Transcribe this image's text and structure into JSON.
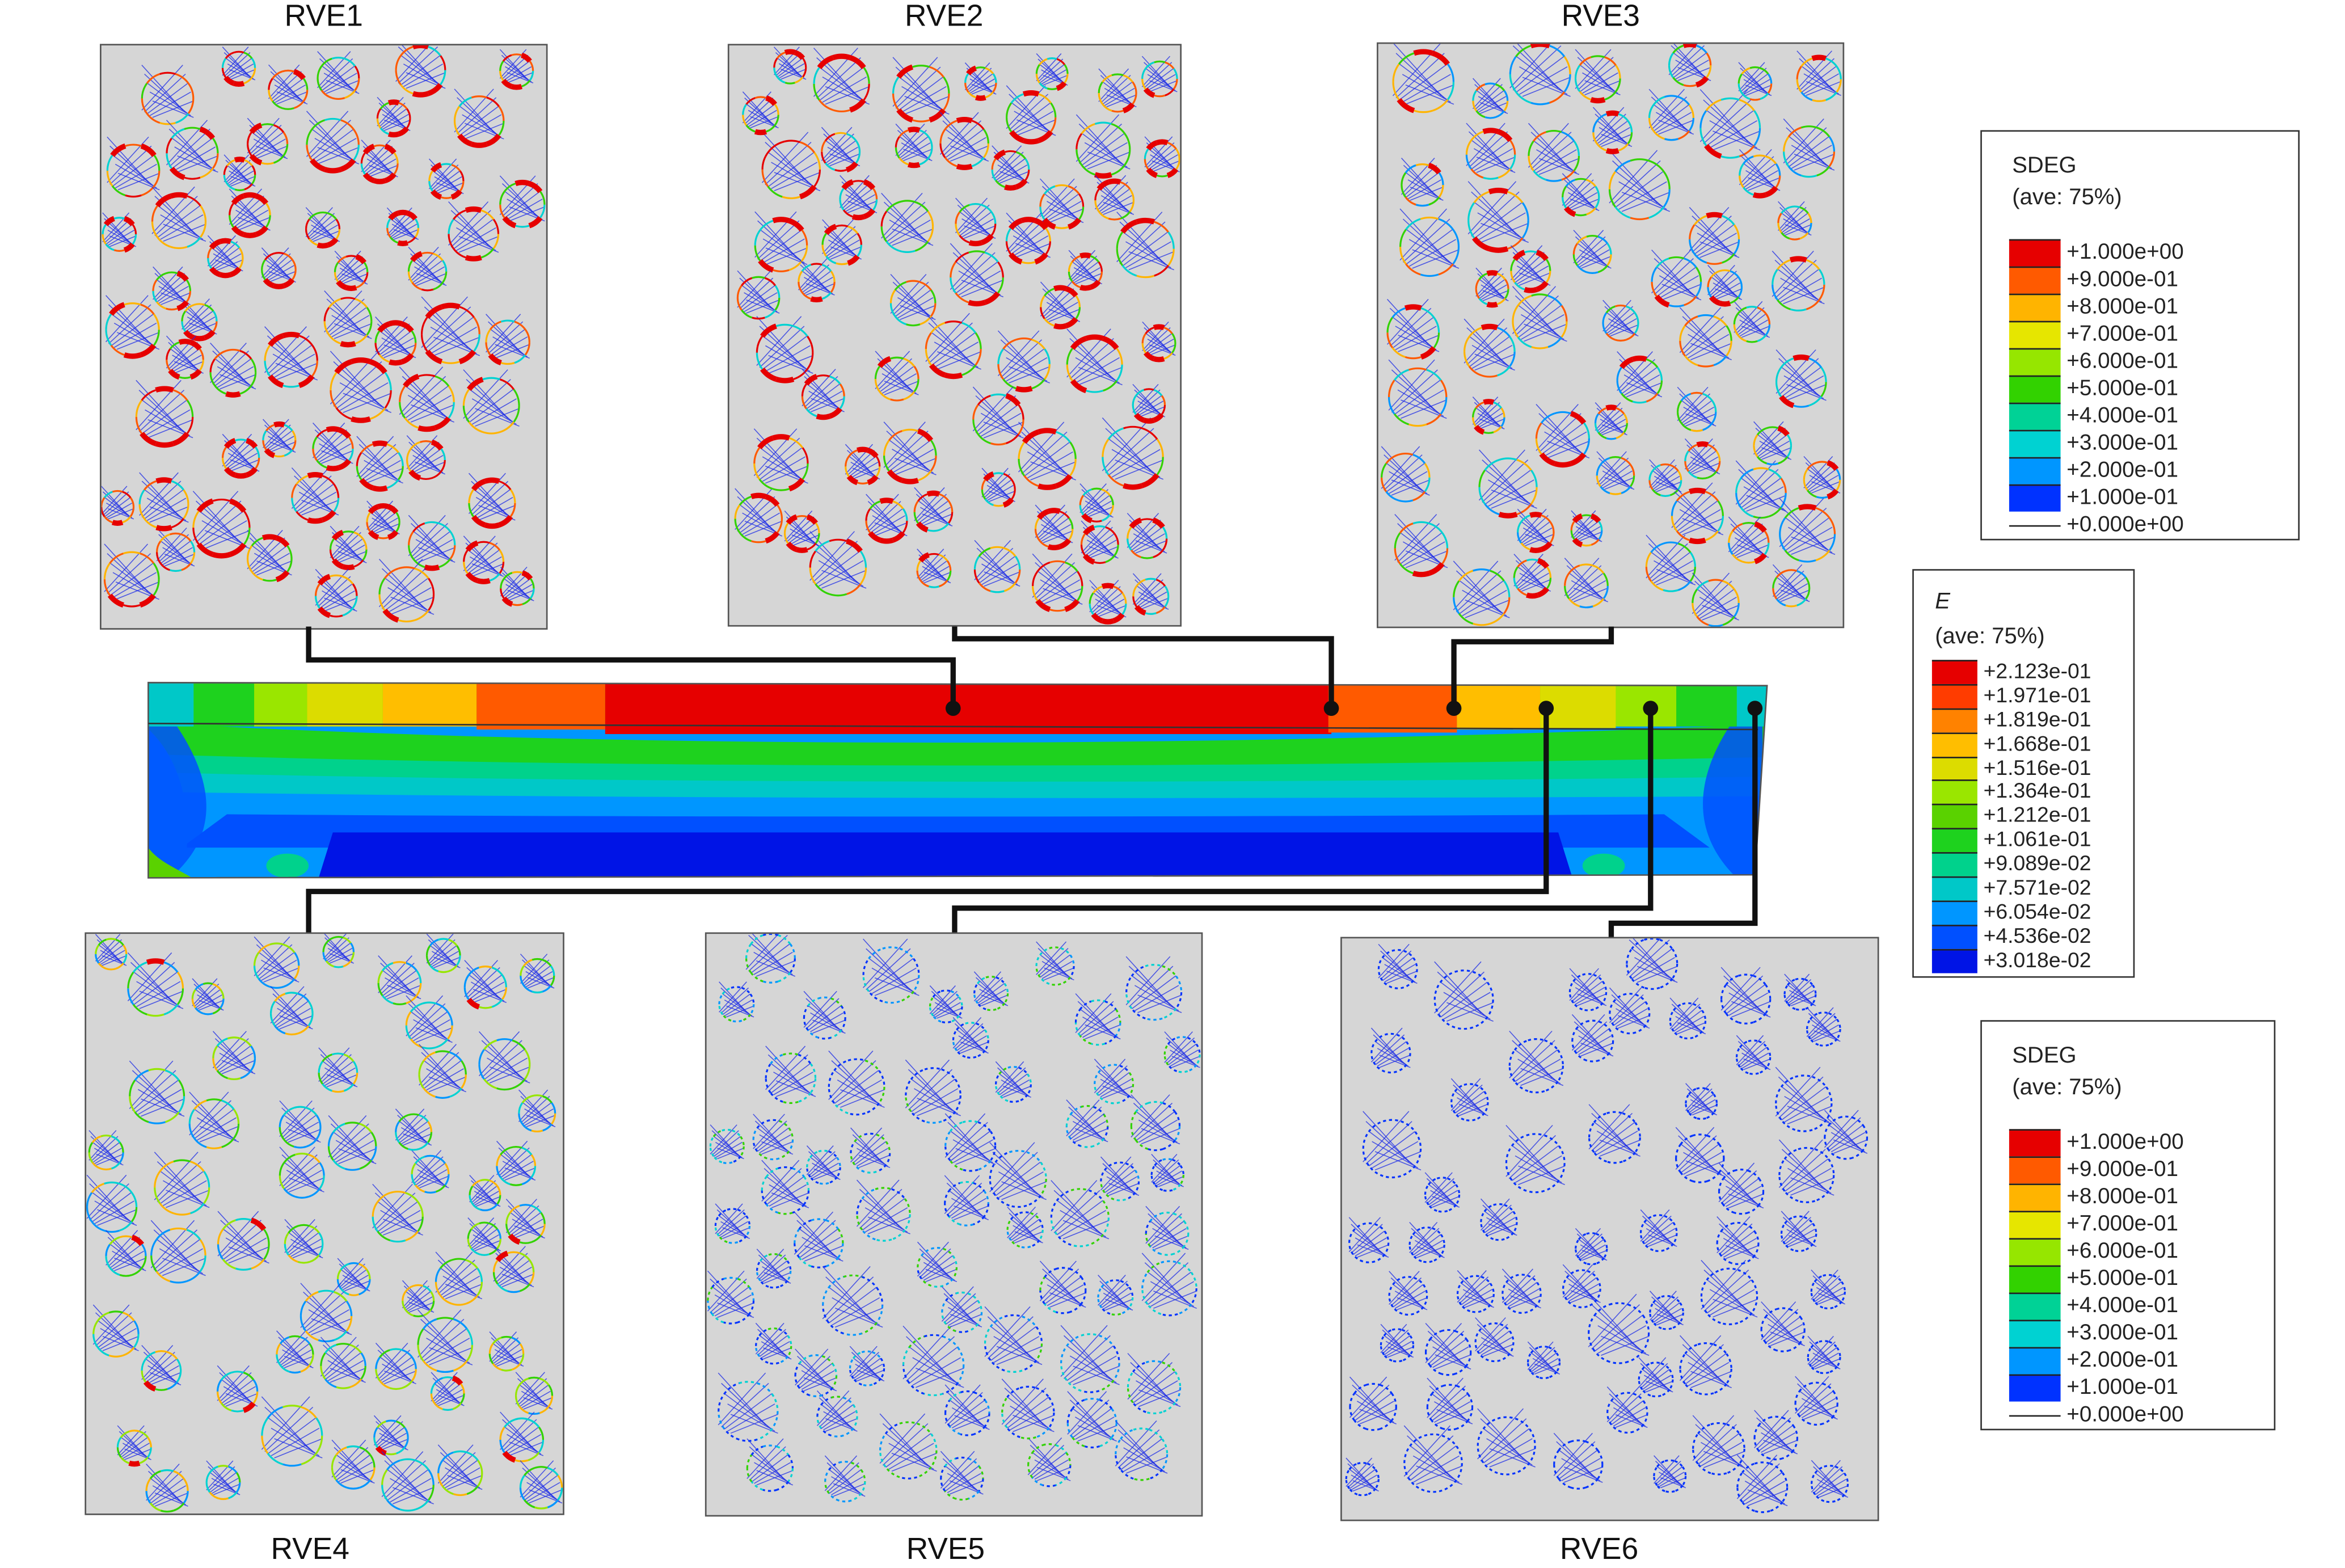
{
  "rve_titles": {
    "rve1": "RVE1",
    "rve2": "RVE2",
    "rve3": "RVE3",
    "rve4": "RVE4",
    "rve5": "RVE5",
    "rve6": "RVE6"
  },
  "legend_sdeg_top": {
    "title": "SDEG",
    "subtitle": "(ave: 75%)",
    "entries": [
      "+1.000e+00",
      "+9.000e-01",
      "+8.000e-01",
      "+7.000e-01",
      "+6.000e-01",
      "+5.000e-01",
      "+4.000e-01",
      "+3.000e-01",
      "+2.000e-01",
      "+1.000e-01",
      "+0.000e+00"
    ],
    "colors": [
      "#e60000",
      "#ff5a00",
      "#ffb400",
      "#e6e600",
      "#96e600",
      "#32d200",
      "#00d296",
      "#00d2d2",
      "#0096ff",
      "#0032ff"
    ]
  },
  "legend_e": {
    "title": "E",
    "subtitle": "(ave: 75%)",
    "entries": [
      "+2.123e-01",
      "+1.971e-01",
      "+1.819e-01",
      "+1.668e-01",
      "+1.516e-01",
      "+1.364e-01",
      "+1.212e-01",
      "+1.061e-01",
      "+9.089e-02",
      "+7.571e-02",
      "+6.054e-02",
      "+4.536e-02",
      "+3.018e-02"
    ],
    "colors": [
      "#e60000",
      "#ff3c00",
      "#ff8200",
      "#ffbe00",
      "#dcdc00",
      "#9ae600",
      "#5ad200",
      "#1ed21e",
      "#00d28c",
      "#00c8c8",
      "#0096ff",
      "#0050ff",
      "#0014e6"
    ]
  },
  "legend_sdeg_bottom": {
    "title": "SDEG",
    "subtitle": "(ave: 75%)",
    "entries": [
      "+1.000e+00",
      "+9.000e-01",
      "+8.000e-01",
      "+7.000e-01",
      "+6.000e-01",
      "+5.000e-01",
      "+4.000e-01",
      "+3.000e-01",
      "+2.000e-01",
      "+1.000e-01",
      "+0.000e+00"
    ],
    "colors": [
      "#e60000",
      "#ff5a00",
      "#ffb400",
      "#e6e600",
      "#96e600",
      "#32d200",
      "#00d296",
      "#00d2d2",
      "#0096ff",
      "#0032ff"
    ]
  }
}
